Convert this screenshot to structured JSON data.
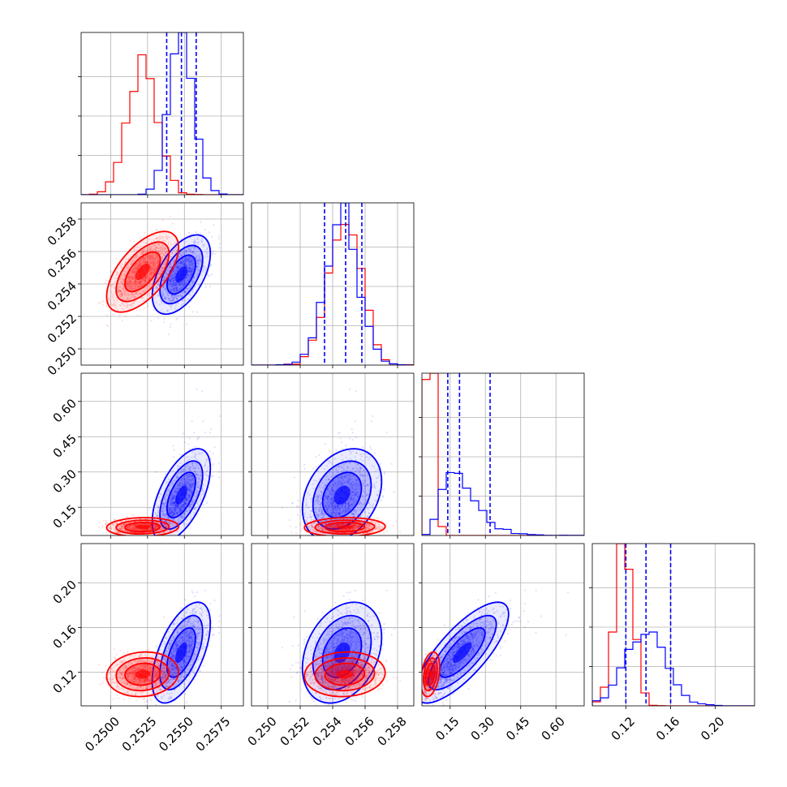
{
  "chart_data": {
    "type": "corner",
    "colors": {
      "red": "#ff0000",
      "blue": "#0000ff"
    },
    "grid": true,
    "series": [
      {
        "color": "#ff0000",
        "params": [
          {
            "mean": 0.2522,
            "sd": 0.001
          },
          {
            "mean": 0.2548,
            "sd": 0.001
          },
          {
            "mean": 0.065,
            "sd": 0.018
          },
          {
            "mean": 0.118,
            "sd": 0.008
          }
        ],
        "corr": [
          [
            0,
            1,
            0.6
          ],
          [
            0,
            2,
            0.1
          ],
          [
            1,
            2,
            0.05
          ],
          [
            0,
            3,
            0.2
          ],
          [
            1,
            3,
            0.05
          ],
          [
            2,
            3,
            0.3
          ]
        ]
      },
      {
        "color": "#0000ff",
        "params": [
          {
            "mean": 0.2548,
            "sd": 0.0008
          },
          {
            "mean": 0.2546,
            "sd": 0.001
          },
          {
            "mean": 0.19,
            "sd": 0.08
          },
          {
            "mean": 0.138,
            "sd": 0.017
          }
        ],
        "corr": [
          [
            0,
            1,
            0.55
          ],
          [
            0,
            2,
            0.6
          ],
          [
            1,
            2,
            0.3
          ],
          [
            0,
            3,
            0.6
          ],
          [
            1,
            3,
            0.3
          ],
          [
            2,
            3,
            0.75
          ]
        ]
      }
    ],
    "params": [
      {
        "range": [
          0.248,
          0.259
        ],
        "ticks": [
          0.25,
          0.2525,
          0.255,
          0.2575
        ],
        "tick_labels": [
          "0.2500",
          "0.2525",
          "0.2550",
          "0.2575"
        ]
      },
      {
        "range": [
          0.249,
          0.259
        ],
        "ticks": [
          0.25,
          0.252,
          0.254,
          0.256,
          0.258
        ],
        "tick_labels": [
          "0.250",
          "0.252",
          "0.254",
          "0.256",
          "0.258"
        ]
      },
      {
        "range": [
          0.03,
          0.72
        ],
        "ticks": [
          0.15,
          0.3,
          0.45,
          0.6
        ],
        "tick_labels": [
          "0.15",
          "0.30",
          "0.45",
          "0.60"
        ]
      },
      {
        "range": [
          0.09,
          0.235
        ],
        "ticks": [
          0.12,
          0.16,
          0.2
        ],
        "tick_labels": [
          "0.12",
          "0.16",
          "0.20"
        ]
      }
    ],
    "diagonal_quantiles_blue": [
      [
        0.2538,
        0.2548,
        0.2558
      ],
      [
        0.2535,
        0.2548,
        0.2558
      ],
      [
        0.14,
        0.19,
        0.32
      ],
      [
        0.12,
        0.138,
        0.16
      ]
    ]
  }
}
